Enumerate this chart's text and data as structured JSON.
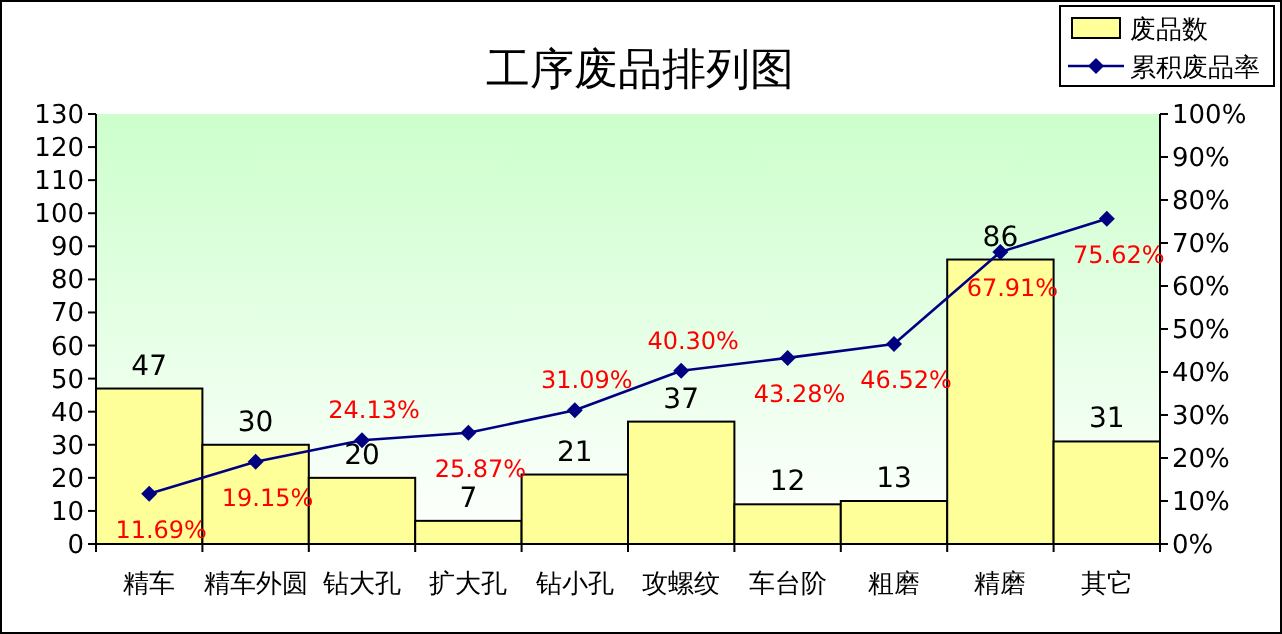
{
  "chart_data": {
    "type": "bar",
    "title": "工序废品排列图",
    "categories": [
      "精车",
      "精车外圆",
      "钻大孔",
      "扩大孔",
      "钻小孔",
      "攻螺纹",
      "车台阶",
      "粗磨",
      "精磨",
      "其它"
    ],
    "ylim": [
      0,
      130
    ],
    "yticks": [
      0,
      10,
      20,
      30,
      40,
      50,
      60,
      70,
      80,
      90,
      100,
      110,
      120,
      130
    ],
    "y2lim": [
      0,
      100
    ],
    "y2ticks": [
      {
        "value": 0,
        "label": "0%"
      },
      {
        "value": 10,
        "label": "10%"
      },
      {
        "value": 20,
        "label": "20%"
      },
      {
        "value": 30,
        "label": "30%"
      },
      {
        "value": 40,
        "label": "40%"
      },
      {
        "value": 50,
        "label": "50%"
      },
      {
        "value": 60,
        "label": "60%"
      },
      {
        "value": 70,
        "label": "70%"
      },
      {
        "value": 80,
        "label": "80%"
      },
      {
        "value": 90,
        "label": "90%"
      },
      {
        "value": 100,
        "label": "100%"
      }
    ],
    "legend": "top right",
    "data_labels": true,
    "series": [
      {
        "name": "废品数",
        "color": "#ffff99",
        "values": [
          47,
          30,
          20,
          7,
          21,
          37,
          12,
          13,
          86,
          31
        ]
      },
      {
        "name": "累积废品率",
        "type": "line",
        "axis": "y2",
        "color": "#000080",
        "marker": "diamond",
        "values": [
          11.69,
          19.15,
          24.13,
          25.87,
          31.09,
          40.3,
          43.28,
          46.52,
          67.91,
          75.62
        ],
        "value_labels": [
          "11.69%",
          "19.15%",
          "24.13%",
          "25.87%",
          "31.09%",
          "40.30%",
          "43.28%",
          "46.52%",
          "67.91%",
          "75.62%"
        ]
      }
    ]
  }
}
